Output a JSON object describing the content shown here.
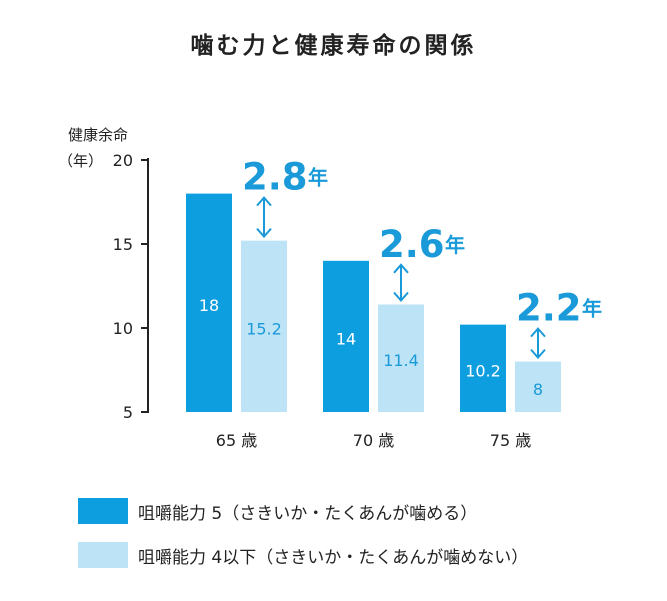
{
  "chart_data": {
    "type": "bar",
    "title": "噛む力と健康寿命の関係",
    "ylabel_line1": "健康余命",
    "ylabel_line2": "（年）",
    "ylim": [
      5,
      20
    ],
    "yticks": [
      5,
      10,
      15,
      20
    ],
    "categories": [
      "65 歳",
      "70 歳",
      "75 歳"
    ],
    "series": [
      {
        "name": "咀嚼能力 5（さきいか・たくあんが噛める）",
        "color": "#0d9ee0",
        "value_label_color": "#ffffff",
        "values": [
          18,
          14,
          10.2
        ],
        "value_labels": [
          "18",
          "14",
          "10.2"
        ]
      },
      {
        "name": "咀嚼能力 4以下（さきいか・たくあんが噛めない）",
        "color": "#bde3f7",
        "value_label_color": "#1a9ad8",
        "values": [
          15.2,
          11.4,
          8
        ],
        "value_labels": [
          "15.2",
          "11.4",
          "8"
        ]
      }
    ],
    "differences": [
      {
        "number": "2.8",
        "unit": "年"
      },
      {
        "number": "2.6",
        "unit": "年"
      },
      {
        "number": "2.2",
        "unit": "年"
      }
    ],
    "accent_color": "#1a9ad8",
    "legend_position": "bottom-left",
    "grid": false
  }
}
